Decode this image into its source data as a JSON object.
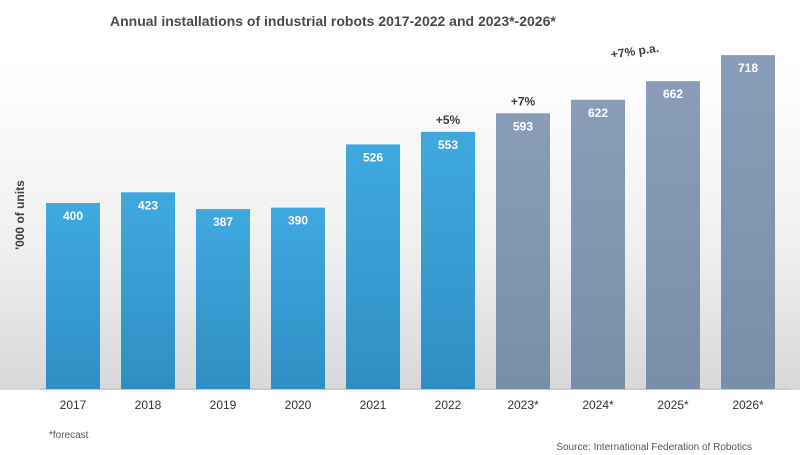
{
  "chart_data": {
    "type": "bar",
    "title": "Annual installations of industrial robots 2017-2022 and 2023*-2026*",
    "xlabel": "",
    "ylabel": "'000 of units",
    "categories": [
      "2017",
      "2018",
      "2019",
      "2020",
      "2021",
      "2022",
      "2023*",
      "2024*",
      "2025*",
      "2026*"
    ],
    "values": [
      400,
      423,
      387,
      390,
      526,
      553,
      593,
      622,
      662,
      718
    ],
    "ylim": [
      0,
      800
    ],
    "grid": false,
    "series_style": {
      "actual": {
        "color": "#3aa2d6",
        "range": "2017-2022"
      },
      "forecast": {
        "color": "#8598b4",
        "range": "2023*-2026*"
      }
    },
    "annotations": [
      {
        "text": "+5%",
        "at": "2022"
      },
      {
        "text": "+7%",
        "at": "2023*"
      },
      {
        "text": "+7% p.a.",
        "at": "2024*-2025*"
      }
    ],
    "footnote": "*forecast",
    "source": "Source: International Federation of Robotics"
  }
}
